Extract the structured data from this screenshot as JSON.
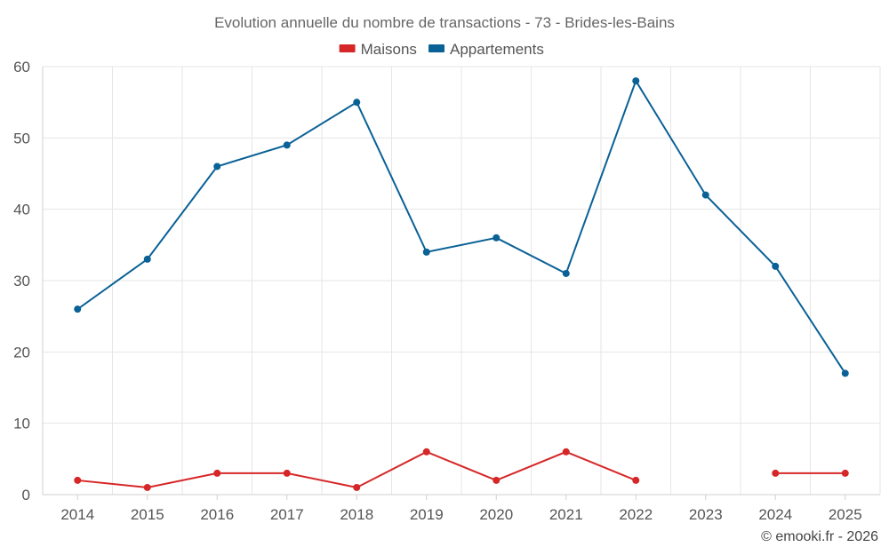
{
  "chart_data": {
    "type": "line",
    "title": "Evolution annuelle du nombre de transactions - 73 - Brides-les-Bains",
    "categories": [
      "2014",
      "2015",
      "2016",
      "2017",
      "2018",
      "2019",
      "2020",
      "2021",
      "2022",
      "2023",
      "2024",
      "2025"
    ],
    "series": [
      {
        "name": "Maisons",
        "color": "#d62728",
        "values": [
          2,
          1,
          3,
          3,
          1,
          6,
          2,
          6,
          2,
          null,
          3,
          3
        ]
      },
      {
        "name": "Appartements",
        "color": "#0a6196",
        "values": [
          26,
          33,
          46,
          49,
          55,
          34,
          36,
          31,
          58,
          42,
          32,
          17
        ]
      }
    ],
    "ylim": [
      0,
      60
    ],
    "yticks": [
      0,
      10,
      20,
      30,
      40,
      50,
      60
    ],
    "grid": true,
    "legend": "top-center",
    "xlabel": "",
    "ylabel": ""
  },
  "credit": "© emooki.fr - 2026"
}
